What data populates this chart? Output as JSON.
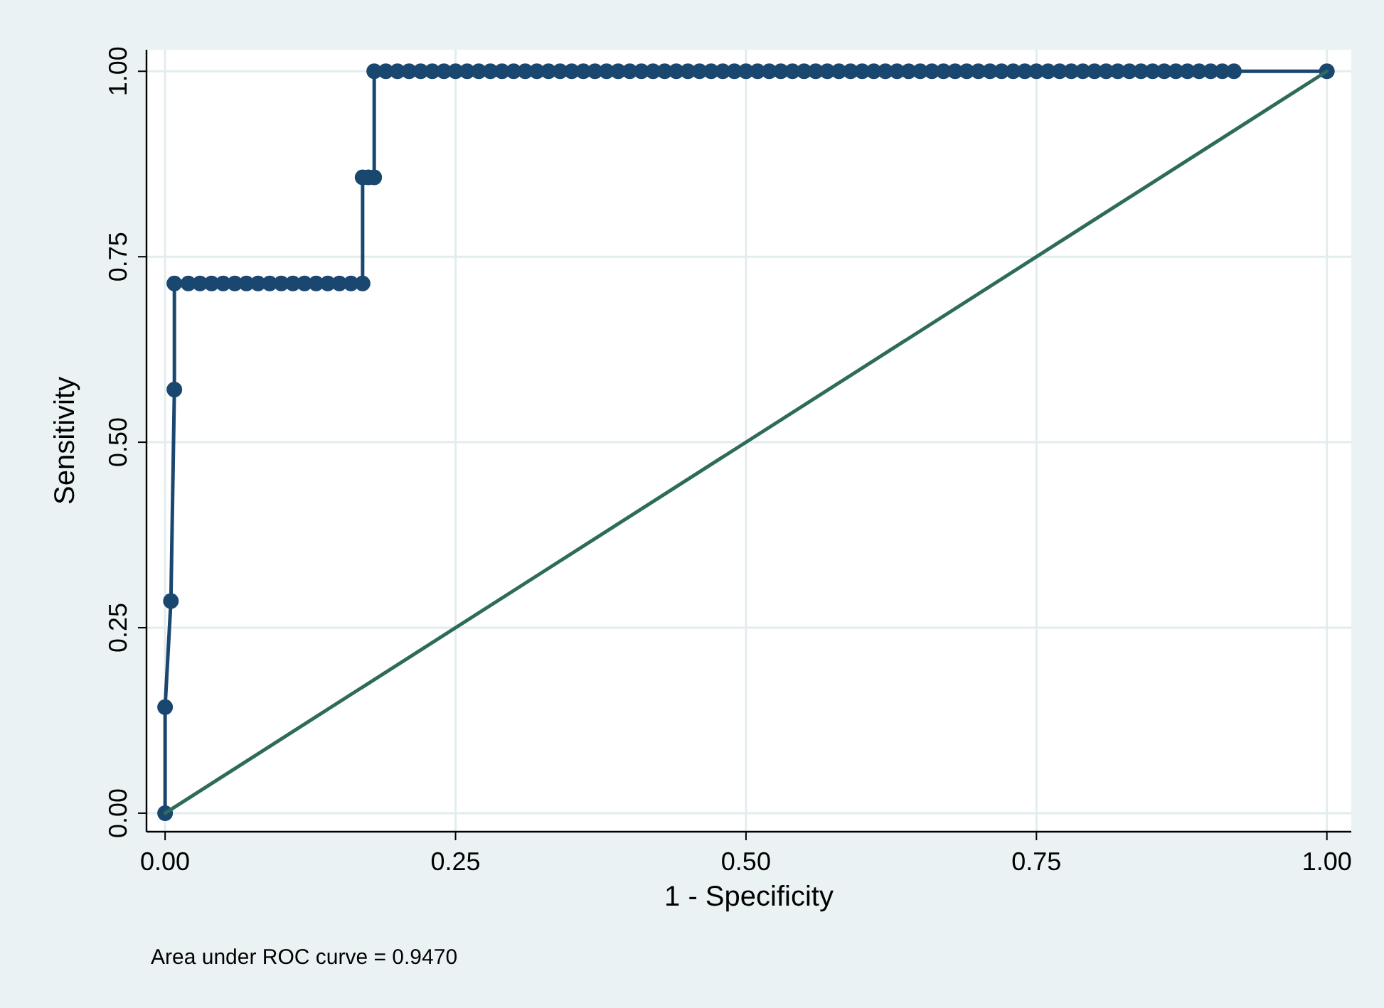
{
  "chart_data": {
    "type": "line",
    "xlabel": "1 - Specificity",
    "ylabel": "Sensitivity",
    "xlim": [
      -0.016,
      1.021
    ],
    "ylim": [
      -0.025,
      1.029
    ],
    "xticks": [
      {
        "value": 0,
        "label": "0.00"
      },
      {
        "value": 0.25,
        "label": "0.25"
      },
      {
        "value": 0.5,
        "label": "0.50"
      },
      {
        "value": 0.75,
        "label": "0.75"
      },
      {
        "value": 1,
        "label": "1.00"
      }
    ],
    "yticks": [
      {
        "value": 0,
        "label": "0.00"
      },
      {
        "value": 0.25,
        "label": "0.25"
      },
      {
        "value": 0.5,
        "label": "0.50"
      },
      {
        "value": 0.75,
        "label": "0.75"
      },
      {
        "value": 1,
        "label": "1.00"
      }
    ],
    "grid": true,
    "series": [
      {
        "color": "#1a476f",
        "marker": "circle",
        "x": [
          0,
          0,
          0.005,
          0.008,
          0.008,
          0.02,
          0.03,
          0.04,
          0.05,
          0.06,
          0.07,
          0.08,
          0.09,
          0.1,
          0.11,
          0.12,
          0.13,
          0.14,
          0.15,
          0.16,
          0.17,
          0.17,
          0.175,
          0.18,
          0.18,
          0.19,
          0.2,
          0.21,
          0.22,
          0.23,
          0.24,
          0.25,
          0.26,
          0.27,
          0.28,
          0.29,
          0.3,
          0.31,
          0.32,
          0.33,
          0.34,
          0.35,
          0.36,
          0.37,
          0.38,
          0.39,
          0.4,
          0.41,
          0.42,
          0.43,
          0.44,
          0.45,
          0.46,
          0.47,
          0.48,
          0.49,
          0.5,
          0.51,
          0.52,
          0.53,
          0.54,
          0.55,
          0.56,
          0.57,
          0.58,
          0.59,
          0.6,
          0.61,
          0.62,
          0.63,
          0.64,
          0.65,
          0.66,
          0.67,
          0.68,
          0.69,
          0.7,
          0.71,
          0.72,
          0.73,
          0.74,
          0.75,
          0.76,
          0.77,
          0.78,
          0.79,
          0.8,
          0.81,
          0.82,
          0.83,
          0.84,
          0.85,
          0.86,
          0.87,
          0.88,
          0.89,
          0.9,
          0.91,
          0.92,
          1
        ],
        "values": [
          0,
          0.143,
          0.286,
          0.571,
          0.714,
          0.714,
          0.714,
          0.714,
          0.714,
          0.714,
          0.714,
          0.714,
          0.714,
          0.714,
          0.714,
          0.714,
          0.714,
          0.714,
          0.714,
          0.714,
          0.714,
          0.857,
          0.857,
          0.857,
          1,
          1,
          1,
          1,
          1,
          1,
          1,
          1,
          1,
          1,
          1,
          1,
          1,
          1,
          1,
          1,
          1,
          1,
          1,
          1,
          1,
          1,
          1,
          1,
          1,
          1,
          1,
          1,
          1,
          1,
          1,
          1,
          1,
          1,
          1,
          1,
          1,
          1,
          1,
          1,
          1,
          1,
          1,
          1,
          1,
          1,
          1,
          1,
          1,
          1,
          1,
          1,
          1,
          1,
          1,
          1,
          1,
          1,
          1,
          1,
          1,
          1,
          1,
          1,
          1,
          1,
          1,
          1,
          1,
          1,
          1,
          1,
          1,
          1,
          1,
          1
        ]
      },
      {
        "color": "#2e6b5a",
        "marker": "none",
        "x": [
          0,
          1
        ],
        "values": [
          0,
          1
        ]
      }
    ],
    "annotations": [
      "Area under ROC curve = 0.9470"
    ]
  }
}
